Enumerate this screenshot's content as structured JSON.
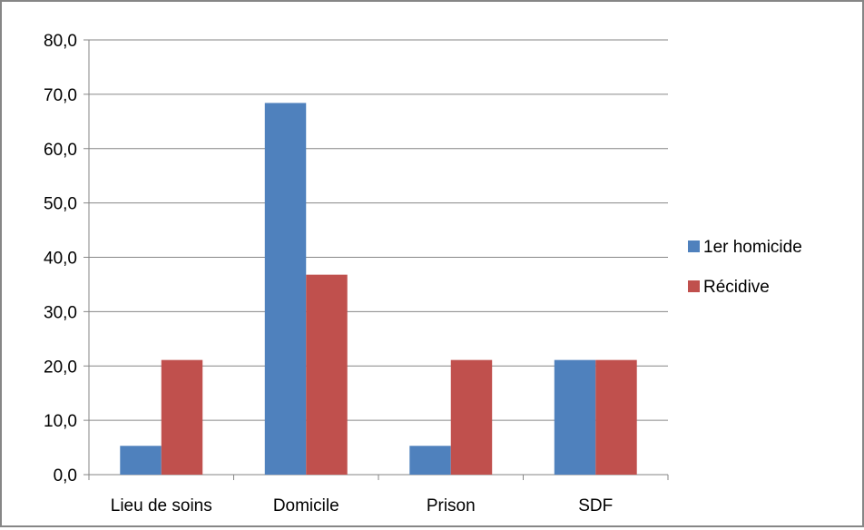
{
  "chart_data": {
    "type": "bar",
    "title": "",
    "xlabel": "",
    "ylabel": "",
    "categories": [
      "Lieu de soins",
      "Domicile",
      "Prison",
      "SDF"
    ],
    "series": [
      {
        "name": "1er homicide",
        "values": [
          5.3,
          68.4,
          5.3,
          21.1
        ],
        "color": "#4F81BD"
      },
      {
        "name": "Récidive",
        "values": [
          21.1,
          36.8,
          21.1,
          21.1
        ],
        "color": "#C0504D"
      }
    ],
    "ylim": [
      0,
      80
    ],
    "yticks": [
      "0,0",
      "10,0",
      "20,0",
      "30,0",
      "40,0",
      "50,0",
      "60,0",
      "70,0",
      "80,0"
    ],
    "grid": true,
    "legend_position": "right"
  }
}
